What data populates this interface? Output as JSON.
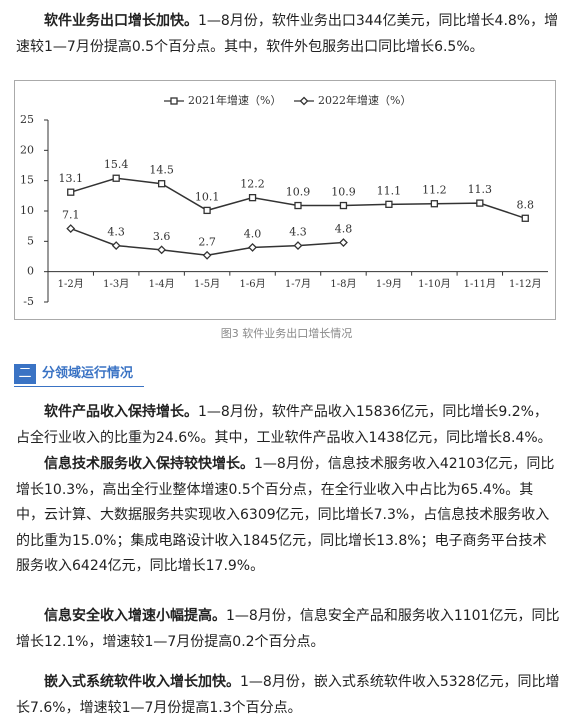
{
  "paragraphs": [
    {
      "bold": "软件业务出口增长加快。",
      "text": "1—8月份，软件业务出口344亿美元，同比增长4.8%，增速较1—7月份提高0.5个百分点。其中，软件外包服务出口同比增长6.5%。"
    },
    {
      "bold": "软件产品收入保持增长。",
      "text": "1—8月份，软件产品收入15836亿元，同比增长9.2%，占全行业收入的比重为24.6%。其中，工业软件产品收入1438亿元，同比增长8.4%。"
    },
    {
      "bold": "信息技术服务收入保持较快增长。",
      "text": "1—8月份，信息技术服务收入42103亿元，同比增长10.3%，高出全行业整体增速0.5个百分点，在全行业收入中占比为65.4%。其中，云计算、大数据服务共实现收入6309亿元，同比增长7.3%，占信息技术服务收入的比重为15.0%；集成电路设计收入1845亿元，同比增长13.8%；电子商务平台技术服务收入6424亿元，同比增长17.9%。"
    },
    {
      "bold": "信息安全收入增速小幅提高。",
      "text": "1—8月份，信息安全产品和服务收入1101亿元，同比增长12.1%，增速较1—7月份提高0.2个百分点。"
    },
    {
      "bold": "嵌入式系统软件收入增长加快。",
      "text": "1—8月份，嵌入式系统软件收入5328亿元，同比增长7.6%，增速较1—7月份提高1.3个百分点。"
    }
  ],
  "caption": "图3   软件业务出口增长情况",
  "section": {
    "number": "二",
    "title": "分领域运行情况"
  },
  "chart_data": {
    "type": "line",
    "categories": [
      "1-2月",
      "1-3月",
      "1-4月",
      "1-5月",
      "1-6月",
      "1-7月",
      "1-8月",
      "1-9月",
      "1-10月",
      "1-11月",
      "1-12月"
    ],
    "series": [
      {
        "name": "2021年增速（%）",
        "color": "#333333",
        "marker": "square",
        "values": [
          13.1,
          15.4,
          14.5,
          10.1,
          12.2,
          10.9,
          10.9,
          11.1,
          11.2,
          11.3,
          8.8
        ],
        "value_labels": [
          "13.1",
          "15.4",
          "14.5",
          "10.1",
          "12.2",
          "10.9",
          "10.9",
          "11.1",
          "11.2",
          "11.3",
          "8.8"
        ]
      },
      {
        "name": "2022年增速（%）",
        "color": "#333333",
        "marker": "diamond",
        "values": [
          7.1,
          4.3,
          3.6,
          2.7,
          4.0,
          4.3,
          4.8,
          null,
          null,
          null,
          null
        ],
        "value_labels": [
          "7.1",
          "4.3",
          "3.6",
          "2.7",
          "4.0",
          "4.3",
          "4.8",
          null,
          null,
          null,
          null
        ]
      }
    ],
    "ylim": [
      -5,
      25
    ],
    "yticks": [
      -5,
      0,
      5,
      10,
      15,
      20,
      25
    ],
    "legend": "top"
  }
}
